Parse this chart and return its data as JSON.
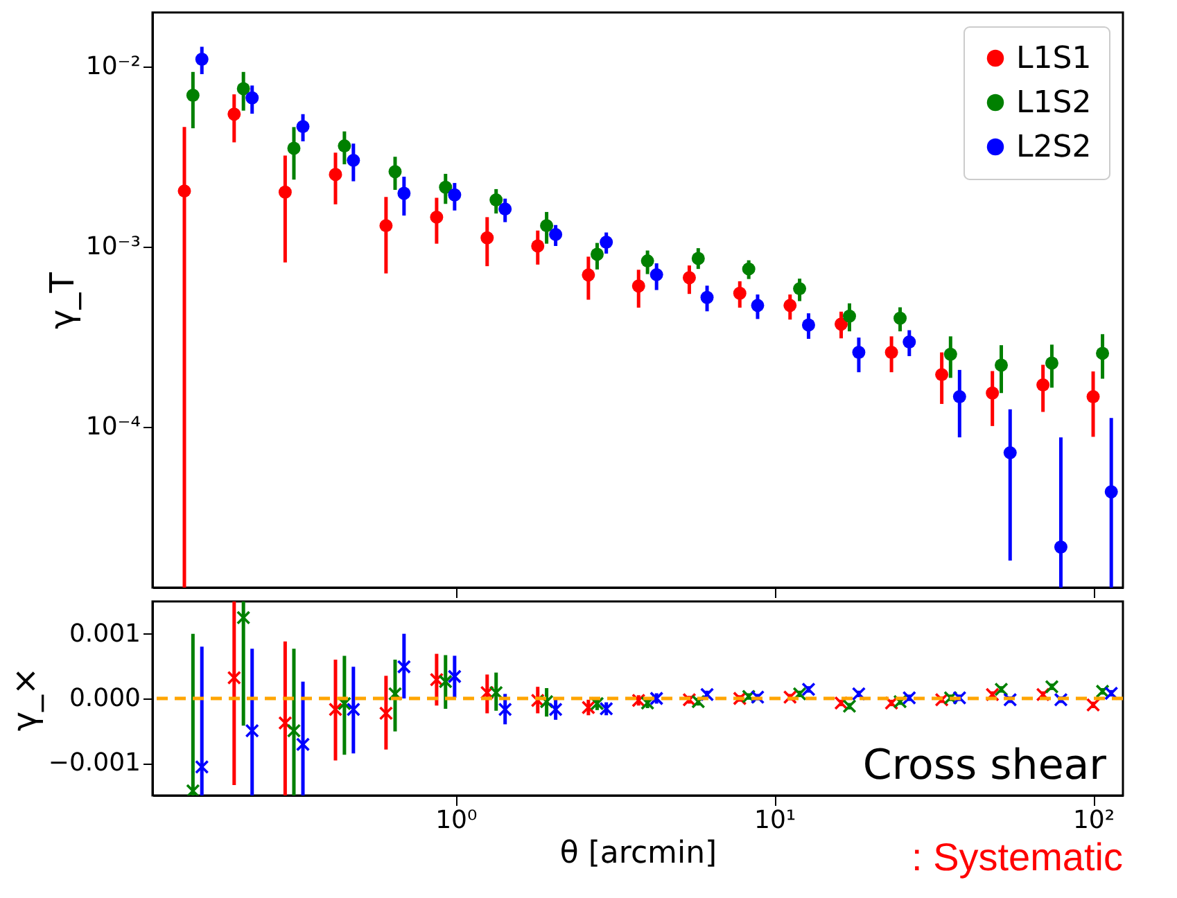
{
  "chart_data": [
    {
      "type": "scatter",
      "ylabel": "γ_T",
      "log": "xy",
      "marker": "circle",
      "legend": "top right",
      "grid": false,
      "tick_labels": "y",
      "xlim": [
        0.112,
        124
      ],
      "xticks": [
        {
          "value": 1,
          "label": null
        },
        {
          "value": 10,
          "label": null
        },
        {
          "value": 100,
          "label": null
        }
      ],
      "ylim": [
        1.28e-05,
        0.02
      ],
      "yticks": [
        {
          "value": 0.0001,
          "label": "10⁻⁴"
        },
        {
          "value": 0.001,
          "label": "10⁻³"
        },
        {
          "value": 0.01,
          "label": "10⁻²"
        }
      ],
      "series": [
        {
          "name": "L1S1",
          "color": "#ff0000",
          "x": [
            0.141,
            0.202,
            0.292,
            0.42,
            0.605,
            0.872,
            1.256,
            1.81,
            2.61,
            3.75,
            5.41,
            7.79,
            11.2,
            16.2,
            23.3,
            33.5,
            48.3,
            69.6,
            100
          ],
          "values": [
            0.00204,
            0.00545,
            0.00201,
            0.00252,
            0.00131,
            0.00146,
            0.00112,
            0.00101,
            0.000697,
            0.000605,
            0.000673,
            0.000552,
            0.000472,
            0.000372,
            0.000259,
            0.000195,
            0.000154,
            0.000171,
            0.000147
          ],
          "errors": [
            [
              1.28e-05,
              0.00463
            ],
            [
              0.0038,
              0.00702
            ],
            [
              0.000818,
              0.00321
            ],
            [
              0.00172,
              0.00333
            ],
            [
              0.000711,
              0.00189
            ],
            [
              0.00104,
              0.00187
            ],
            [
              0.00078,
              0.00146
            ],
            [
              0.000796,
              0.00123
            ],
            [
              0.000508,
              0.000881
            ],
            [
              0.000459,
              0.000745
            ],
            [
              0.000547,
              0.000787
            ],
            [
              0.000459,
              0.000643
            ],
            [
              0.000394,
              0.000543
            ],
            [
              0.00031,
              0.000436
            ],
            [
              0.000201,
              0.000318
            ],
            [
              0.000134,
              0.000259
            ],
            [
              0.000101,
              0.000204
            ],
            [
              0.000121,
              0.000221
            ],
            [
              8.8e-05,
              0.000203
            ]
          ]
        },
        {
          "name": "L1S2",
          "color": "#008000",
          "x": [
            0.15,
            0.216,
            0.311,
            0.448,
            0.646,
            0.93,
            1.34,
            1.93,
            2.78,
            4.0,
            5.77,
            8.31,
            12.0,
            17.2,
            24.8,
            35.7,
            51.5,
            74.2,
            107
          ],
          "values": [
            0.00694,
            0.00755,
            0.00352,
            0.00363,
            0.00261,
            0.00214,
            0.00182,
            0.00131,
            0.000908,
            0.000834,
            0.000861,
            0.000753,
            0.000585,
            0.000412,
            0.000401,
            0.000253,
            0.00022,
            0.000226,
            0.000256
          ],
          "errors": [
            [
              0.00455,
              0.00935
            ],
            [
              0.0057,
              0.00935
            ],
            [
              0.00236,
              0.00462
            ],
            [
              0.00287,
              0.00437
            ],
            [
              0.00207,
              0.00316
            ],
            [
              0.00173,
              0.00254
            ],
            [
              0.00153,
              0.00209
            ],
            [
              0.00104,
              0.00156
            ],
            [
              0.000748,
              0.00105
            ],
            [
              0.000705,
              0.000953
            ],
            [
              0.000753,
              0.000982
            ],
            [
              0.000662,
              0.000841
            ],
            [
              0.000499,
              0.000665
            ],
            [
              0.000339,
              0.000485
            ],
            [
              0.000339,
              0.000461
            ],
            [
              0.000187,
              0.000318
            ],
            [
              0.000154,
              0.000284
            ],
            [
              0.000165,
              0.000286
            ],
            [
              0.000185,
              0.000327
            ]
          ]
        },
        {
          "name": "L2S2",
          "color": "#0000ff",
          "x": [
            0.16,
            0.23,
            0.332,
            0.478,
            0.689,
            0.993,
            1.43,
            2.06,
            2.97,
            4.27,
            6.15,
            8.86,
            12.8,
            18.4,
            26.5,
            38.1,
            54.9,
            79.2,
            114
          ],
          "values": [
            0.011,
            0.00671,
            0.00465,
            0.00302,
            0.00198,
            0.00194,
            0.00162,
            0.00117,
            0.00106,
            0.0007,
            0.000523,
            0.000472,
            0.000368,
            0.000259,
            0.000296,
            0.000147,
            7.18e-05,
            2.15e-05,
            4.36e-05
          ],
          "errors": [
            [
              0.00909,
              0.0129
            ],
            [
              0.00548,
              0.00786
            ],
            [
              0.00385,
              0.00545
            ],
            [
              0.00231,
              0.00374
            ],
            [
              0.00149,
              0.00245
            ],
            [
              0.00159,
              0.00226
            ],
            [
              0.00137,
              0.00185
            ],
            [
              0.00101,
              0.00132
            ],
            [
              0.000916,
              0.0012
            ],
            [
              0.000575,
              0.000809
            ],
            [
              0.000438,
              0.000608
            ],
            [
              0.000397,
              0.000543
            ],
            [
              0.000308,
              0.000427
            ],
            [
              0.000201,
              0.000313
            ],
            [
              0.000247,
              0.000344
            ],
            [
              8.74e-05,
              0.000207
            ],
            [
              1.81e-05,
              0.000125
            ],
            [
              1.28e-05,
              8.74e-05
            ],
            [
              1.28e-05,
              0.000112
            ]
          ]
        }
      ]
    },
    {
      "type": "scatter",
      "xlabel": "θ [arcmin]",
      "ylabel": "γ_×",
      "log": "x",
      "marker": "cross",
      "legend": false,
      "grid": false,
      "xlim": [
        0.112,
        124
      ],
      "xticks": [
        {
          "value": 1,
          "label": "10⁰"
        },
        {
          "value": 10,
          "label": "10¹"
        },
        {
          "value": 100,
          "label": "10²"
        }
      ],
      "ylim": [
        -0.0015,
        0.0015
      ],
      "yticks": [
        {
          "value": -0.001,
          "label": "−0.001"
        },
        {
          "value": 0,
          "label": "0.000"
        },
        {
          "value": 0.001,
          "label": "0.001"
        }
      ],
      "ref_lines": [
        {
          "axis": "y",
          "value": 0,
          "color": "#ffa500",
          "line_style": "dashed"
        }
      ],
      "annotations": [
        "Cross shear",
        ": Systematic"
      ],
      "series": [
        {
          "color": "#ff0000",
          "x": [
            0.202,
            0.292,
            0.42,
            0.605,
            0.872,
            1.256,
            1.81,
            2.61,
            3.75,
            5.41,
            7.79,
            11.2,
            16.2,
            23.3,
            33.5,
            48.3,
            69.6,
            100
          ],
          "values": [
            0.00032,
            -0.00038,
            -0.00017,
            -0.00023,
            0.00029,
            9e-05,
            -3e-05,
            -0.00014,
            -3e-05,
            -2e-05,
            0,
            2e-05,
            -7e-05,
            -7e-05,
            -2e-05,
            6e-05,
            6e-05,
            -0.0001
          ],
          "errors": [
            [
              -0.00134,
              0.0015
            ],
            [
              -0.0015,
              0.00088
            ],
            [
              -0.00096,
              0.0006
            ],
            [
              -0.00079,
              0.00035
            ],
            [
              -0.00011,
              0.00069
            ],
            [
              -0.00023,
              0.00037
            ],
            [
              -0.00023,
              0.00018
            ],
            0.00012,
            8e-05,
            6e-05,
            5e-05,
            5e-05,
            5e-05,
            5e-05,
            5e-05,
            5e-05,
            5e-05,
            5e-05
          ]
        },
        {
          "color": "#008000",
          "x": [
            0.15,
            0.216,
            0.311,
            0.448,
            0.646,
            0.93,
            1.34,
            1.93,
            2.78,
            4.0,
            5.77,
            8.31,
            12.0,
            17.2,
            24.8,
            35.7,
            51.5,
            74.2,
            107
          ],
          "values": [
            -0.00143,
            0.00125,
            -0.0005,
            -8e-05,
            7e-05,
            0.00026,
            9e-05,
            -5e-05,
            -8e-05,
            -7e-05,
            -5e-05,
            3e-05,
            7e-05,
            -0.00012,
            -5e-05,
            1e-05,
            0.00014,
            0.00018,
            0.00011
          ],
          "errors": [
            [
              -0.0015,
              0.001
            ],
            [
              -0.00042,
              0.0015
            ],
            [
              -0.0015,
              0.00077
            ],
            [
              -0.00087,
              0.00066
            ],
            [
              -0.00051,
              0.0006
            ],
            [
              -0.00016,
              0.00067
            ],
            [
              -0.00019,
              0.0004
            ],
            [
              -0.00028,
              0.00016
            ],
            0.0001,
            8e-05,
            6e-05,
            5e-05,
            5e-05,
            5e-05,
            5e-05,
            5e-05,
            5e-05,
            5e-05,
            5e-05
          ]
        },
        {
          "color": "#0000ff",
          "x": [
            0.16,
            0.23,
            0.332,
            0.478,
            0.689,
            0.993,
            1.43,
            2.06,
            2.97,
            4.27,
            6.15,
            8.86,
            12.8,
            18.4,
            26.5,
            38.1,
            54.9,
            79.2,
            114
          ],
          "values": [
            -0.00106,
            -0.0005,
            -0.00071,
            -0.00017,
            0.00049,
            0.00034,
            -0.00017,
            -0.00017,
            -0.00016,
            0,
            6e-05,
            2e-05,
            0.00014,
            7e-05,
            1e-05,
            1e-05,
            -2e-05,
            -2e-05,
            8e-05
          ],
          "errors": [
            [
              -0.0015,
              0.0008
            ],
            [
              -0.0015,
              0.00077
            ],
            [
              -0.0015,
              0.00026
            ],
            [
              -0.00085,
              0.00049
            ],
            [
              0,
              0.001
            ],
            [
              1e-05,
              0.00066
            ],
            [
              -0.0004,
              7e-05
            ],
            [
              -0.00033,
              -2e-05
            ],
            0.0001,
            8e-05,
            6e-05,
            5e-05,
            5e-05,
            5e-05,
            5e-05,
            5e-05,
            5e-05,
            5e-05,
            5e-05
          ]
        }
      ]
    }
  ]
}
